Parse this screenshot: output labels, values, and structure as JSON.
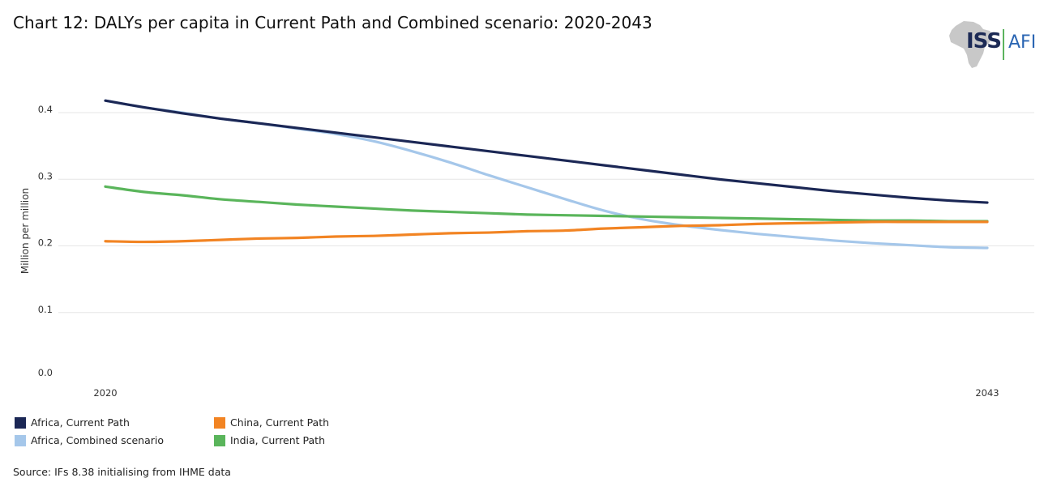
{
  "title": "Chart 12: DALYs per capita in Current Path and Combined scenario: 2020-2043",
  "logo": {
    "left_text": "ISS",
    "right_text": "AFI",
    "icon": "africa-map-icon"
  },
  "source": "Source: IFs 8.38 initialising from IHME data",
  "chart_data": {
    "type": "line",
    "title": "Chart 12: DALYs per capita in Current Path and Combined scenario: 2020-2043",
    "xlabel": "",
    "ylabel": "Million per million",
    "x": [
      2020,
      2021,
      2022,
      2023,
      2024,
      2025,
      2026,
      2027,
      2028,
      2029,
      2030,
      2031,
      2032,
      2033,
      2034,
      2035,
      2036,
      2037,
      2038,
      2039,
      2040,
      2041,
      2042,
      2043
    ],
    "x_tick_labels": [
      "2020",
      "2043"
    ],
    "y_ticks": [
      0.0,
      0.1,
      0.2,
      0.3,
      0.4
    ],
    "y_tick_labels": [
      "0.0",
      "0.1",
      "0.2",
      "0.3",
      "0.4"
    ],
    "ylim": [
      0,
      0.42
    ],
    "grid": "horizontal",
    "legend_position": "bottom-left",
    "series": [
      {
        "name": "Africa, Current Path",
        "color": "#1b2755",
        "values": [
          0.418,
          0.408,
          0.399,
          0.391,
          0.384,
          0.377,
          0.37,
          0.363,
          0.356,
          0.349,
          0.342,
          0.335,
          0.328,
          0.321,
          0.314,
          0.307,
          0.3,
          0.294,
          0.288,
          0.282,
          0.277,
          0.272,
          0.268,
          0.265
        ]
      },
      {
        "name": "China, Current Path",
        "color": "#f28423",
        "values": [
          0.207,
          0.206,
          0.207,
          0.209,
          0.211,
          0.212,
          0.214,
          0.215,
          0.217,
          0.219,
          0.22,
          0.222,
          0.223,
          0.226,
          0.228,
          0.23,
          0.231,
          0.233,
          0.234,
          0.235,
          0.236,
          0.236,
          0.236,
          0.236
        ]
      },
      {
        "name": "Africa, Combined scenario",
        "color": "#a5c7ea",
        "values": [
          0.418,
          0.408,
          0.4,
          0.391,
          0.384,
          0.376,
          0.368,
          0.357,
          0.342,
          0.325,
          0.306,
          0.288,
          0.27,
          0.253,
          0.24,
          0.231,
          0.224,
          0.218,
          0.213,
          0.208,
          0.204,
          0.201,
          0.198,
          0.197
        ]
      },
      {
        "name": "India, Current Path",
        "color": "#5ab55b",
        "values": [
          0.289,
          0.281,
          0.276,
          0.27,
          0.266,
          0.262,
          0.259,
          0.256,
          0.253,
          0.251,
          0.249,
          0.247,
          0.246,
          0.245,
          0.244,
          0.243,
          0.242,
          0.241,
          0.24,
          0.239,
          0.238,
          0.238,
          0.237,
          0.237
        ]
      }
    ],
    "legend_order": [
      0,
      2,
      1,
      3
    ]
  }
}
